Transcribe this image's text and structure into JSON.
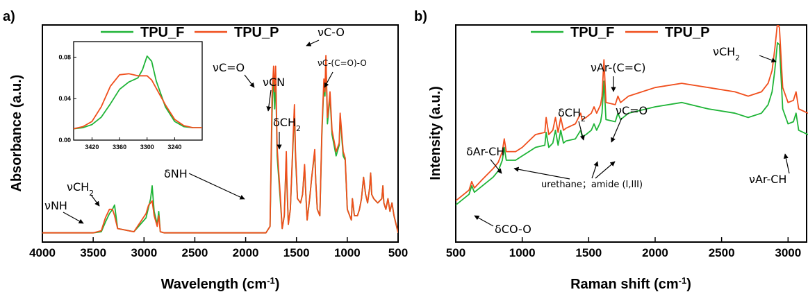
{
  "colors": {
    "TPU_F": "#1fb437",
    "TPU_P": "#f04e1c"
  },
  "chart_data": [
    {
      "panel": "a)",
      "type": "line",
      "xlabel": "Wavelength (cm",
      "xlabel_sup": "-1",
      "xlabel_end": ")",
      "ylabel": "Absorbance (a.u.)",
      "xlim": [
        4000,
        500
      ],
      "ylim": [
        0,
        1
      ],
      "x_ticks": [
        4000,
        3500,
        3000,
        2500,
        2000,
        1500,
        1000,
        500
      ],
      "legend": "top",
      "grid": false,
      "series": [
        {
          "name": "TPU_F",
          "color": "#1fb437",
          "x": [
            4000,
            3500,
            3420,
            3380,
            3340,
            3310,
            3290,
            3260,
            3100,
            2980,
            2955,
            2935,
            2920,
            2900,
            2870,
            2855,
            2840,
            2800,
            2400,
            1800,
            1760,
            1740,
            1725,
            1715,
            1705,
            1690,
            1660,
            1640,
            1620,
            1600,
            1595,
            1580,
            1560,
            1530,
            1520,
            1510,
            1490,
            1460,
            1440,
            1420,
            1410,
            1395,
            1370,
            1350,
            1320,
            1310,
            1295,
            1270,
            1250,
            1230,
            1220,
            1210,
            1195,
            1185,
            1170,
            1150,
            1110,
            1080,
            1070,
            1060,
            1040,
            1020,
            1000,
            960,
            950,
            930,
            900,
            880,
            860,
            840,
            820,
            800,
            780,
            770,
            760,
            740,
            700,
            660,
            650,
            640,
            620,
            600,
            580,
            560,
            540,
            520,
            500
          ],
          "y": [
            0.04,
            0.04,
            0.045,
            0.09,
            0.13,
            0.15,
            0.17,
            0.06,
            0.045,
            0.11,
            0.16,
            0.2,
            0.26,
            0.14,
            0.08,
            0.14,
            0.045,
            0.04,
            0.04,
            0.04,
            0.07,
            0.6,
            0.8,
            0.62,
            0.79,
            0.4,
            0.2,
            0.06,
            0.12,
            0.4,
            0.28,
            0.08,
            0.15,
            0.5,
            0.62,
            0.4,
            0.2,
            0.18,
            0.22,
            0.35,
            0.24,
            0.1,
            0.2,
            0.3,
            0.42,
            0.28,
            0.15,
            0.12,
            0.5,
            0.74,
            0.68,
            0.85,
            0.55,
            0.6,
            0.68,
            0.5,
            0.4,
            0.45,
            0.58,
            0.52,
            0.4,
            0.38,
            0.15,
            0.1,
            0.2,
            0.12,
            0.12,
            0.15,
            0.2,
            0.3,
            0.22,
            0.18,
            0.25,
            0.32,
            0.22,
            0.2,
            0.18,
            0.2,
            0.26,
            0.18,
            0.15,
            0.2,
            0.14,
            0.18,
            0.12,
            0.08,
            0.04
          ]
        },
        {
          "name": "TPU_P",
          "color": "#f04e1c",
          "x": [
            4000,
            3500,
            3420,
            3380,
            3340,
            3310,
            3290,
            3260,
            3100,
            2980,
            2955,
            2935,
            2920,
            2900,
            2870,
            2855,
            2840,
            2800,
            2400,
            1800,
            1760,
            1740,
            1725,
            1715,
            1705,
            1690,
            1660,
            1640,
            1620,
            1600,
            1595,
            1580,
            1560,
            1530,
            1520,
            1510,
            1490,
            1460,
            1440,
            1420,
            1410,
            1395,
            1370,
            1350,
            1320,
            1310,
            1295,
            1270,
            1250,
            1230,
            1220,
            1210,
            1195,
            1185,
            1170,
            1150,
            1110,
            1080,
            1070,
            1060,
            1040,
            1020,
            1000,
            960,
            950,
            930,
            900,
            880,
            860,
            840,
            820,
            800,
            780,
            770,
            760,
            740,
            700,
            660,
            650,
            640,
            620,
            600,
            580,
            560,
            540,
            520,
            500
          ],
          "y": [
            0.04,
            0.04,
            0.05,
            0.11,
            0.15,
            0.15,
            0.12,
            0.06,
            0.045,
            0.13,
            0.17,
            0.18,
            0.19,
            0.12,
            0.07,
            0.12,
            0.045,
            0.04,
            0.04,
            0.04,
            0.07,
            0.68,
            0.82,
            0.7,
            0.82,
            0.44,
            0.22,
            0.06,
            0.12,
            0.42,
            0.3,
            0.08,
            0.15,
            0.52,
            0.64,
            0.42,
            0.2,
            0.18,
            0.22,
            0.36,
            0.24,
            0.1,
            0.2,
            0.3,
            0.43,
            0.28,
            0.15,
            0.12,
            0.52,
            0.76,
            0.7,
            0.87,
            0.58,
            0.62,
            0.7,
            0.52,
            0.42,
            0.46,
            0.6,
            0.54,
            0.42,
            0.39,
            0.15,
            0.1,
            0.2,
            0.12,
            0.12,
            0.15,
            0.2,
            0.3,
            0.22,
            0.18,
            0.25,
            0.32,
            0.22,
            0.2,
            0.18,
            0.2,
            0.26,
            0.18,
            0.15,
            0.2,
            0.14,
            0.18,
            0.12,
            0.08,
            0.04
          ]
        }
      ],
      "annotations": [
        {
          "text": "νNH"
        },
        {
          "text": "νCH",
          "sub": "2"
        },
        {
          "text": "δNH"
        },
        {
          "text": "νC=O"
        },
        {
          "text": "νCN"
        },
        {
          "text": "δCH",
          "sub": "2"
        },
        {
          "text": "νC-O"
        },
        {
          "text": "νC-(C=O)-O"
        }
      ],
      "inset": {
        "type": "line",
        "xlim": [
          3460,
          3180
        ],
        "ylim": [
          0,
          0.095
        ],
        "x_ticks": [
          3420,
          3360,
          3300,
          3240
        ],
        "y_ticks": [
          "0.00",
          "0.04",
          "0.08"
        ],
        "series": [
          {
            "name": "TPU_F",
            "color": "#1fb437",
            "x": [
              3460,
              3440,
              3420,
              3400,
              3380,
              3360,
              3340,
              3320,
              3310,
              3300,
              3290,
              3280,
              3260,
              3240,
              3220,
              3200,
              3180
            ],
            "y": [
              0.011,
              0.012,
              0.015,
              0.022,
              0.035,
              0.049,
              0.056,
              0.06,
              0.068,
              0.081,
              0.076,
              0.057,
              0.032,
              0.018,
              0.013,
              0.012,
              0.012
            ]
          },
          {
            "name": "TPU_P",
            "color": "#f04e1c",
            "x": [
              3460,
              3440,
              3420,
              3400,
              3380,
              3360,
              3340,
              3320,
              3310,
              3300,
              3290,
              3280,
              3260,
              3240,
              3220,
              3200,
              3180
            ],
            "y": [
              0.011,
              0.013,
              0.018,
              0.032,
              0.052,
              0.063,
              0.064,
              0.062,
              0.062,
              0.062,
              0.058,
              0.05,
              0.034,
              0.02,
              0.014,
              0.012,
              0.012
            ]
          }
        ]
      }
    },
    {
      "panel": "b)",
      "type": "line",
      "xlabel": "Raman shift (cm",
      "xlabel_sup": "-1",
      "xlabel_end": ")",
      "ylabel": "Intensity (a.u.)",
      "xlim": [
        500,
        3150
      ],
      "ylim": [
        0,
        1
      ],
      "x_ticks": [
        500,
        1000,
        1500,
        2000,
        2500,
        3000
      ],
      "legend": "top",
      "grid": false,
      "series": [
        {
          "name": "TPU_F",
          "color": "#1fb437",
          "x": [
            500,
            600,
            620,
            640,
            700,
            780,
            820,
            850,
            865,
            880,
            950,
            1000,
            1100,
            1170,
            1180,
            1200,
            1230,
            1250,
            1270,
            1290,
            1310,
            1330,
            1400,
            1440,
            1450,
            1480,
            1520,
            1540,
            1560,
            1590,
            1600,
            1615,
            1630,
            1700,
            1720,
            1740,
            1800,
            2000,
            2200,
            2400,
            2600,
            2700,
            2800,
            2850,
            2880,
            2900,
            2920,
            2935,
            2960,
            3000,
            3040,
            3060,
            3080,
            3150
          ],
          "y": [
            0.17,
            0.22,
            0.26,
            0.23,
            0.26,
            0.3,
            0.33,
            0.38,
            0.44,
            0.38,
            0.38,
            0.4,
            0.44,
            0.45,
            0.51,
            0.44,
            0.46,
            0.52,
            0.45,
            0.52,
            0.46,
            0.47,
            0.48,
            0.52,
            0.49,
            0.5,
            0.52,
            0.55,
            0.52,
            0.56,
            0.6,
            0.75,
            0.57,
            0.56,
            0.6,
            0.57,
            0.6,
            0.63,
            0.65,
            0.62,
            0.6,
            0.58,
            0.6,
            0.64,
            0.7,
            0.8,
            0.93,
            0.92,
            0.62,
            0.55,
            0.56,
            0.6,
            0.52,
            0.5
          ]
        },
        {
          "name": "TPU_P",
          "color": "#f04e1c",
          "x": [
            500,
            600,
            620,
            640,
            700,
            780,
            820,
            850,
            865,
            880,
            950,
            1000,
            1100,
            1170,
            1180,
            1200,
            1230,
            1250,
            1270,
            1290,
            1310,
            1330,
            1400,
            1440,
            1450,
            1480,
            1520,
            1540,
            1560,
            1590,
            1600,
            1615,
            1630,
            1700,
            1720,
            1740,
            1800,
            2000,
            2200,
            2400,
            2600,
            2700,
            2800,
            2850,
            2880,
            2900,
            2920,
            2935,
            2960,
            3000,
            3040,
            3060,
            3080,
            3150
          ],
          "y": [
            0.19,
            0.24,
            0.28,
            0.25,
            0.29,
            0.34,
            0.37,
            0.42,
            0.48,
            0.42,
            0.42,
            0.44,
            0.5,
            0.51,
            0.58,
            0.5,
            0.52,
            0.58,
            0.51,
            0.58,
            0.52,
            0.53,
            0.55,
            0.6,
            0.57,
            0.58,
            0.6,
            0.63,
            0.6,
            0.64,
            0.68,
            0.85,
            0.65,
            0.64,
            0.68,
            0.65,
            0.68,
            0.72,
            0.74,
            0.72,
            0.7,
            0.68,
            0.7,
            0.74,
            0.8,
            0.9,
            1.02,
            1.0,
            0.72,
            0.65,
            0.66,
            0.7,
            0.62,
            0.6
          ]
        }
      ],
      "annotations": [
        {
          "text": "δAr-CH"
        },
        {
          "text": "δCO-O"
        },
        {
          "text": "δCH",
          "sub": "2"
        },
        {
          "text": "νAr-(C=C)"
        },
        {
          "text": "νC=O"
        },
        {
          "text": "urethane；amide (I,III)"
        },
        {
          "text": "νCH",
          "sub": "2"
        },
        {
          "text": "νAr-CH"
        }
      ]
    }
  ]
}
